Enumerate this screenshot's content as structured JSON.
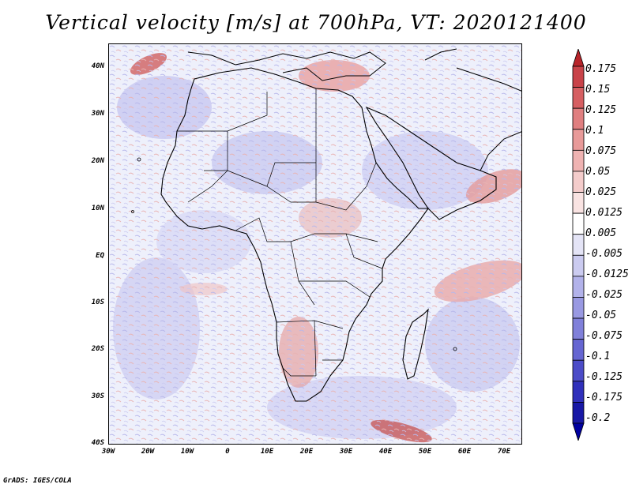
{
  "title": "Vertical velocity [m/s] at 700hPa, VT: 2020121400",
  "credit": "GrADS: IGES/COLA",
  "map": {
    "lat_labels": [
      "40N",
      "30N",
      "20N",
      "10N",
      "EQ",
      "10S",
      "20S",
      "30S",
      "40S"
    ],
    "lon_labels": [
      "30W",
      "20W",
      "10W",
      "0",
      "10E",
      "20E",
      "30E",
      "40E",
      "50E",
      "60E",
      "70E"
    ],
    "background_color": "#f4f4fb",
    "coastline_color": "#000000"
  },
  "colorbar": {
    "labels": [
      "0.175",
      "0.15",
      "0.125",
      "0.1",
      "0.075",
      "0.05",
      "0.025",
      "0.0125",
      "0.005",
      "-0.005",
      "-0.0125",
      "-0.025",
      "-0.05",
      "-0.075",
      "-0.1",
      "-0.125",
      "-0.175",
      "-0.2"
    ],
    "colors": [
      "#b8242a",
      "#c94349",
      "#d65f62",
      "#e07f80",
      "#e89a99",
      "#efb3b2",
      "#f4cccb",
      "#f9e3e2",
      "#ffffff",
      "#e4e4f6",
      "#cbcbf0",
      "#b2b2ea",
      "#9999e2",
      "#8080da",
      "#6666d2",
      "#4c4cc8",
      "#3030bb",
      "#1818a6",
      "#0000a0"
    ]
  }
}
